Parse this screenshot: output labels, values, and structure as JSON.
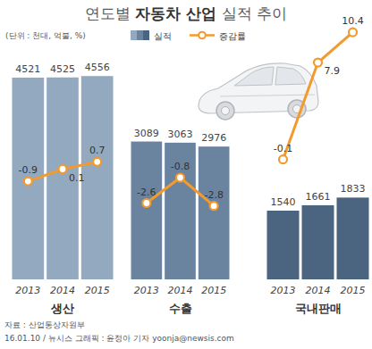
{
  "header": {
    "title": {
      "prefix": "연도별 ",
      "emphasis": "자동차 산업",
      "suffix": " 실적 추이"
    },
    "units": "(단위 : 천대, 억불, %)"
  },
  "chart_data": [
    {
      "type": "bar",
      "title": "생산",
      "categories": [
        "2013",
        "2014",
        "2015"
      ],
      "series": [
        {
          "name": "실적",
          "type": "bar",
          "color": "#92a9c0",
          "values": [
            4521,
            4525,
            4556
          ]
        },
        {
          "name": "증감률",
          "type": "line",
          "axis": "y2",
          "color": "#f39a2c",
          "marker": "circle",
          "values": [
            -0.9,
            0.1,
            0.7
          ]
        }
      ],
      "ylim": [
        0,
        5700
      ],
      "y2lim": [
        -9,
        12
      ],
      "data_labels": true,
      "tick_labels": "x"
    },
    {
      "type": "bar",
      "title": "수출",
      "categories": [
        "2013",
        "2014",
        "2015"
      ],
      "series": [
        {
          "type": "bar",
          "color": "#6a849f",
          "values": [
            3089,
            3063,
            2976
          ]
        },
        {
          "type": "line",
          "axis": "y2",
          "color": "#f39a2c",
          "marker": "circle",
          "values": [
            -2.6,
            -0.8,
            -2.8
          ]
        }
      ],
      "ylim": [
        0,
        5700
      ],
      "y2lim": [
        -8,
        10
      ],
      "data_labels": true,
      "tick_labels": "x"
    },
    {
      "type": "bar",
      "title": "국내판매",
      "categories": [
        "2013",
        "2014",
        "2015"
      ],
      "series": [
        {
          "type": "bar",
          "color": "#4b6580",
          "values": [
            1540,
            1661,
            1833
          ]
        },
        {
          "type": "line",
          "axis": "y2",
          "color": "#f39a2c",
          "marker": "circle",
          "values": [
            -0.1,
            7.9,
            10.4
          ]
        }
      ],
      "ylim": [
        0,
        5700
      ],
      "y2lim": [
        -10,
        11
      ],
      "data_labels": true,
      "tick_labels": "x"
    }
  ],
  "footer": {
    "source": "자료 : 산업통상자원부",
    "credit": "16.01.10 / 뉴시스 그래픽 : 윤정아 기자 yoonja@newsis.com"
  }
}
